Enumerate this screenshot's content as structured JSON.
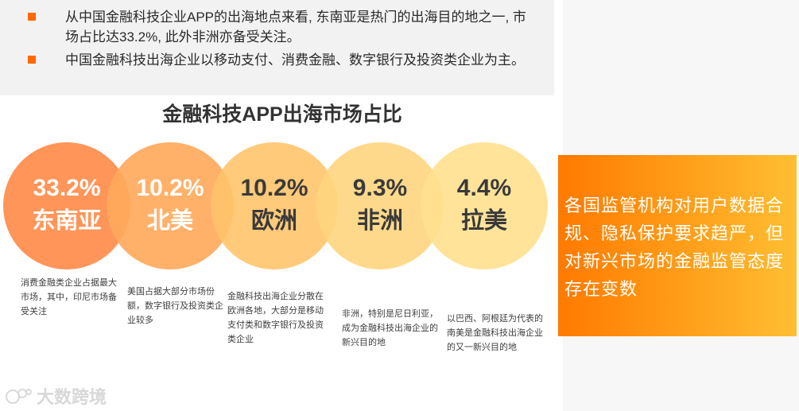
{
  "bullets": [
    {
      "text": "从中国金融科技企业APP的出海地点来看, 东南亚是热门的出海目的地之一, 市场占比达33.2%, 此外非洲亦备受关注。"
    },
    {
      "text": "中国金融科技出海企业以移动支付、消费金融、数字银行及投资类企业为主。"
    }
  ],
  "callout": {
    "text": "各国监管机构对用户数据合规、隐私保护要求趋严，但对新兴市场的金融监管态度存在变数"
  },
  "watermark": {
    "text": "大数跨境"
  },
  "colors": {
    "accent": "#ff6a00",
    "bullet": "#ff6a00",
    "circles": [
      "#ff8a47",
      "#ffa95a",
      "#ffc46a",
      "#ffd57e",
      "#ffe08e"
    ],
    "circle_value_text": "#ffffff",
    "circle_label_text": "#ffffff"
  },
  "chart_data": {
    "type": "bubble-share",
    "title": "金融科技APP出海市场占比",
    "categories": [
      "东南亚",
      "北美",
      "欧洲",
      "非洲",
      "拉美"
    ],
    "values": [
      33.2,
      10.2,
      10.2,
      9.3,
      4.4
    ],
    "value_labels": [
      "33.2%",
      "10.2%",
      "10.2%",
      "9.3%",
      "4.4%"
    ],
    "unit": "%",
    "descriptions": [
      "消费金融类企业占据最大市场，其中，印尼市场备受关注",
      "美国占据大部分市场份额，数字银行及投资类企业较多",
      "金融科技出海企业分散在欧洲各地，大部分是移动支付类和数字银行及投资类企业",
      "非洲，特别是尼日利亚，成为金融科技出海企业的新兴目的地",
      "以巴西、阿根廷为代表的南美是金融科技出海企业的又一新兴目的地"
    ]
  }
}
